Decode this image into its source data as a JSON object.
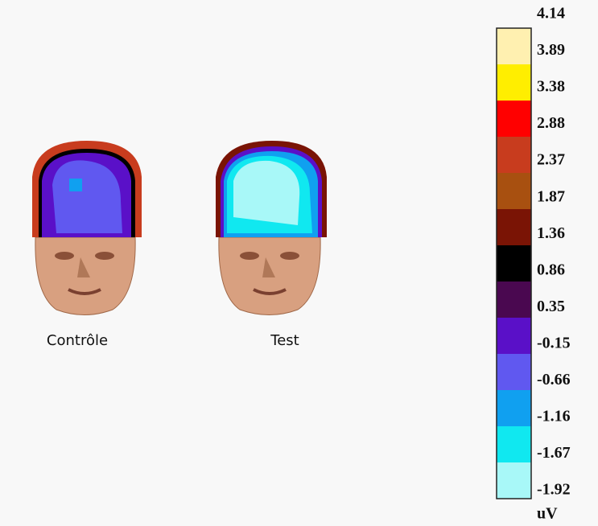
{
  "heads": [
    {
      "label": "Contrôle"
    },
    {
      "label": "Test"
    }
  ],
  "colorbar": {
    "ticks": [
      "4.14",
      "3.89",
      "3.38",
      "2.88",
      "2.37",
      "1.87",
      "1.36",
      "0.86",
      "0.35",
      "-0.15",
      "-0.66",
      "-1.16",
      "-1.67",
      "-1.92"
    ],
    "colors": [
      "#fff0b0",
      "#ffee00",
      "#ff0000",
      "#c83c1e",
      "#a85010",
      "#7a1405",
      "#000000",
      "#4a0850",
      "#5a10c8",
      "#6058f0",
      "#10a0f0",
      "#10e8f0",
      "#a8f8f8"
    ],
    "unit": "uV"
  }
}
